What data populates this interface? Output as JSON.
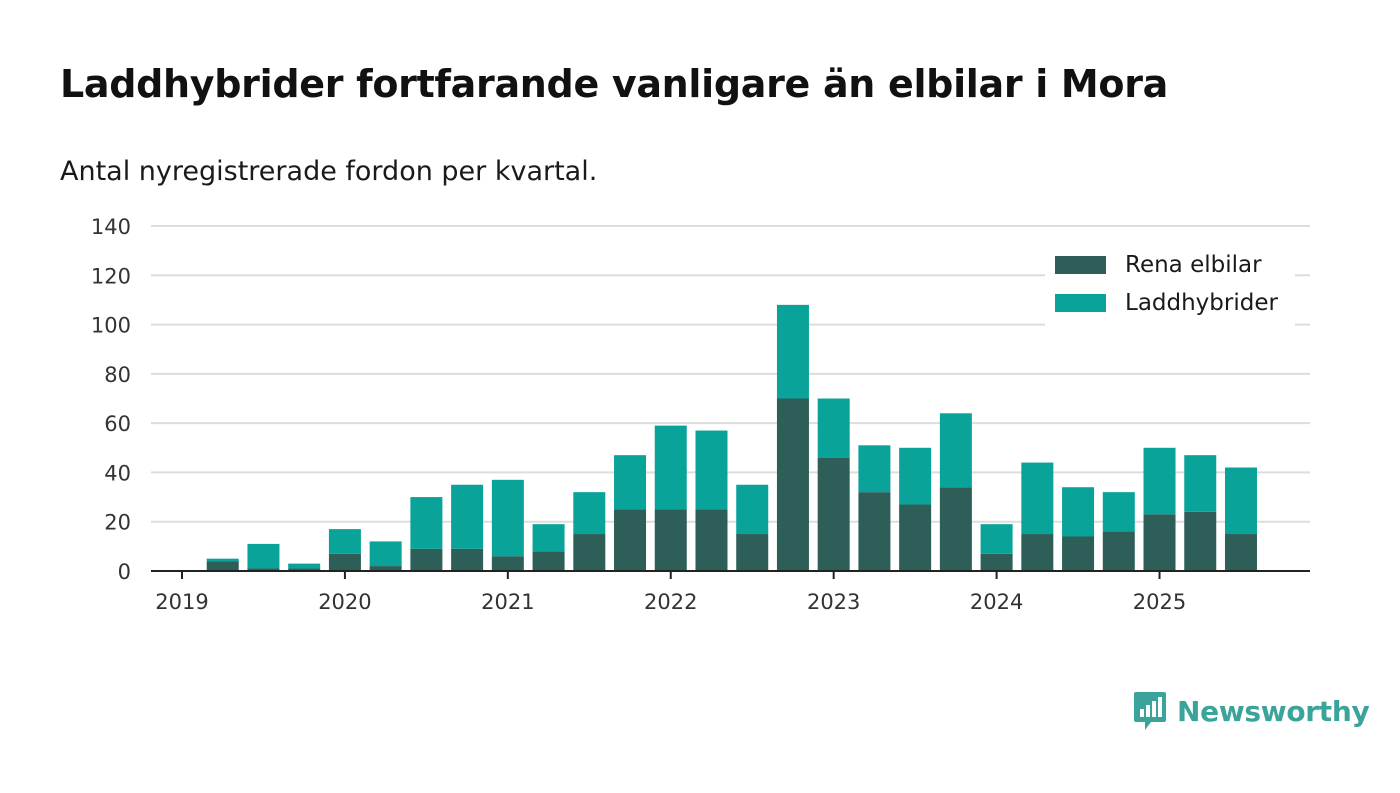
{
  "header": {
    "title": "Laddhybrider fortfarande vanligare än elbilar i Mora",
    "subtitle": "Antal nyregistrerade fordon per kvartal."
  },
  "brand": {
    "name": "Newsworthy",
    "color": "#3aa39a"
  },
  "chart_data": {
    "type": "bar",
    "stacked": true,
    "title": "Laddhybrider fortfarande vanligare än elbilar i Mora",
    "subtitle": "Antal nyregistrerade fordon per kvartal.",
    "xlabel": "",
    "ylabel": "",
    "ylim": [
      0,
      140
    ],
    "yticks": [
      0,
      20,
      40,
      60,
      80,
      100,
      120,
      140
    ],
    "grid": true,
    "legend_position": "top-right",
    "x_tick_labels": [
      "2019",
      "2020",
      "2021",
      "2022",
      "2023",
      "2024",
      "2025"
    ],
    "categories": [
      "2019 Q1",
      "2019 Q2",
      "2019 Q3",
      "2019 Q4",
      "2020 Q1",
      "2020 Q2",
      "2020 Q3",
      "2020 Q4",
      "2021 Q1",
      "2021 Q2",
      "2021 Q3",
      "2021 Q4",
      "2022 Q1",
      "2022 Q2",
      "2022 Q3",
      "2022 Q4",
      "2023 Q1",
      "2023 Q2",
      "2023 Q3",
      "2023 Q4",
      "2024 Q1",
      "2024 Q2",
      "2024 Q3",
      "2024 Q4",
      "2025 Q1",
      "2025 Q2",
      "2025 Q3"
    ],
    "series": [
      {
        "name": "Rena elbilar",
        "color": "#2e5e58",
        "values": [
          0,
          4,
          1,
          1,
          7,
          2,
          9,
          9,
          6,
          8,
          15,
          25,
          25,
          25,
          15,
          70,
          46,
          32,
          27,
          34,
          7,
          15,
          14,
          16,
          23,
          24,
          15
        ]
      },
      {
        "name": "Laddhybrider",
        "color": "#0aa399",
        "values": [
          0,
          1,
          10,
          2,
          10,
          10,
          21,
          26,
          31,
          11,
          17,
          22,
          34,
          32,
          20,
          38,
          24,
          19,
          23,
          30,
          12,
          29,
          20,
          16,
          27,
          23,
          27
        ]
      }
    ]
  }
}
